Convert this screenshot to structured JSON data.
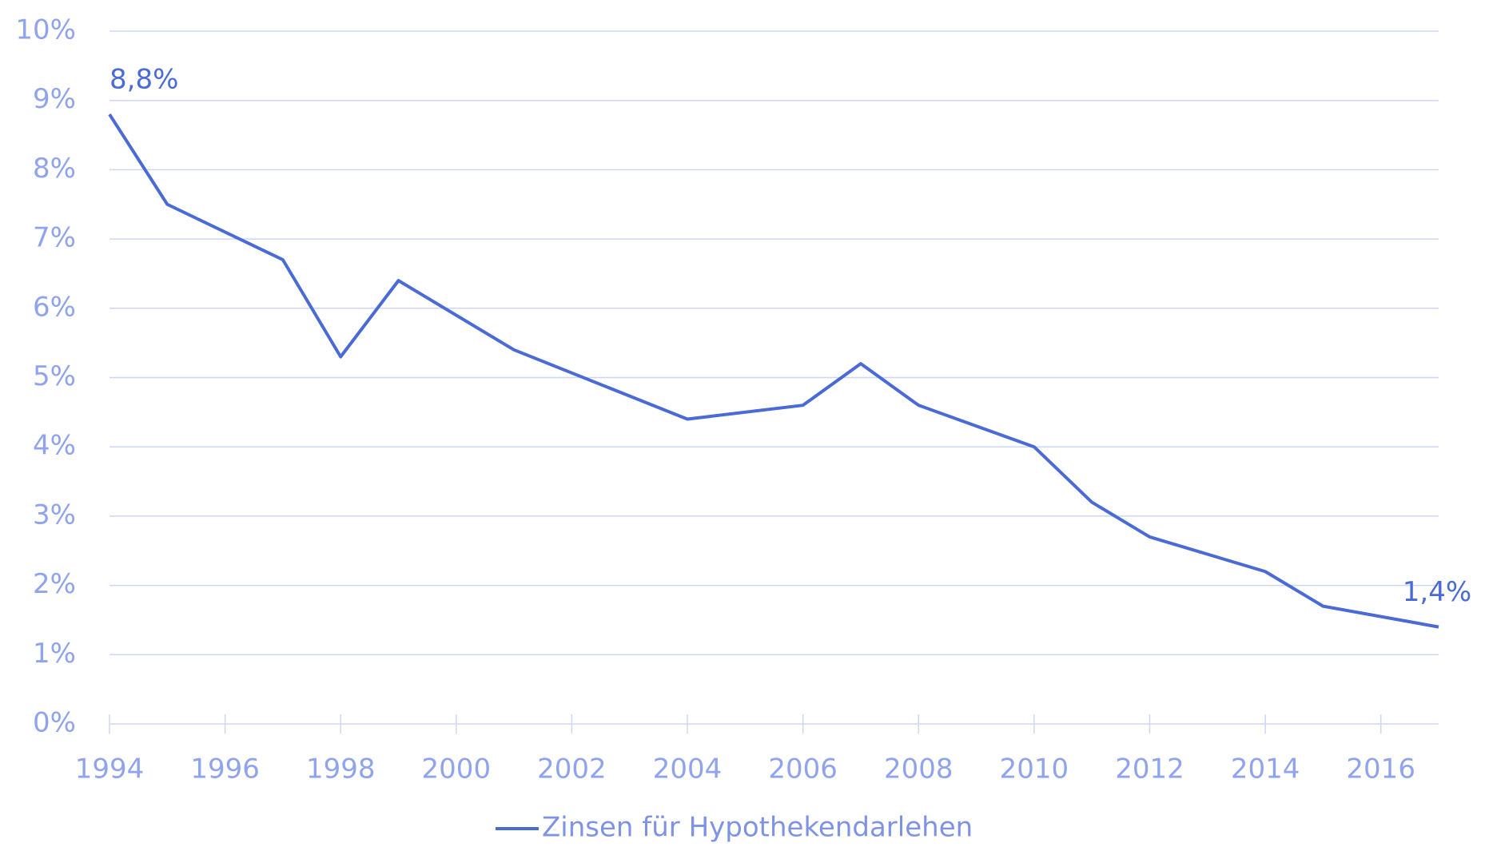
{
  "chart_data": {
    "type": "line",
    "x": [
      1994,
      1995,
      1997,
      1998,
      1999,
      2001,
      2004,
      2006,
      2007,
      2008,
      2010,
      2011,
      2012,
      2014,
      2015,
      2017
    ],
    "series": [
      {
        "name": "Zinsen für Hypothekendarlehen",
        "color": "#4a6ad6",
        "values": [
          8.8,
          7.5,
          6.7,
          5.3,
          6.4,
          5.4,
          4.4,
          4.6,
          5.2,
          4.6,
          4.0,
          3.2,
          2.7,
          2.2,
          1.7,
          1.4
        ],
        "value_labels": [
          "8,8%",
          null,
          null,
          null,
          null,
          null,
          null,
          null,
          null,
          null,
          null,
          null,
          null,
          null,
          null,
          "1,4%"
        ]
      }
    ],
    "xlim": [
      1994,
      2017
    ],
    "xticks": [
      1994,
      1996,
      1998,
      2000,
      2002,
      2004,
      2006,
      2008,
      2010,
      2012,
      2014,
      2016
    ],
    "ylim": [
      0,
      10
    ],
    "yticks": [
      {
        "value": 0,
        "label": "0%"
      },
      {
        "value": 1,
        "label": "1%"
      },
      {
        "value": 2,
        "label": "2%"
      },
      {
        "value": 3,
        "label": "3%"
      },
      {
        "value": 4,
        "label": "4%"
      },
      {
        "value": 5,
        "label": "5%"
      },
      {
        "value": 6,
        "label": "6%"
      },
      {
        "value": 7,
        "label": "7%"
      },
      {
        "value": 8,
        "label": "8%"
      },
      {
        "value": 9,
        "label": "9%"
      },
      {
        "value": 10,
        "label": "10%"
      }
    ],
    "grid": true,
    "legend": "bottom"
  }
}
